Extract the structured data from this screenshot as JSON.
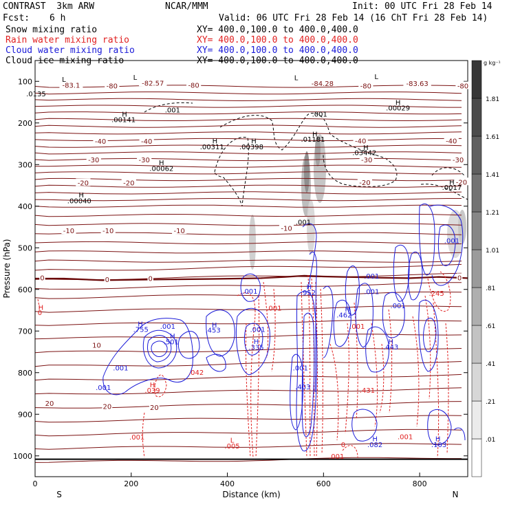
{
  "header": {
    "model": "CONTRAST  3km ARW",
    "center": "NCAR/MMM",
    "init": "Init: 00 UTC Fri 28 Feb 14",
    "fcst_label": "Fcst:",
    "fcst_value": "6 h",
    "valid": "Valid: 06 UTC Fri 28 Feb 14 (16 ChT Fri 28 Feb 14)"
  },
  "fields": [
    {
      "name": "Snow mixing ratio",
      "xy": "XY= 400.0,100.0 to 400.0,400.0",
      "color": "#000000"
    },
    {
      "name": "Rain water mixing ratio",
      "xy": "XY= 400.0,100.0 to 400.0,400.0",
      "color": "#e02020"
    },
    {
      "name": "Cloud water mixing ratio",
      "xy": "XY= 400.0,100.0 to 400.0,400.0",
      "color": "#1a1ad8"
    },
    {
      "name": "Cloud ice mixing ratio",
      "xy": "XY= 400.0,100.0 to 400.0,400.0",
      "color": "#000000"
    }
  ],
  "colors": {
    "temperature": "#7a1010",
    "freezing_level": "#6a0808",
    "rain": "#e02020",
    "cloud_water": "#1a1ad8",
    "ice": "#000000",
    "snow_shading": "#404040"
  },
  "chart_data": {
    "type": "contour",
    "xlabel": "Distance (km)",
    "ylabel": "Pressure (hPa)",
    "xlim": [
      0,
      900
    ],
    "ylim": [
      1050,
      50
    ],
    "x_ticks": [
      "0",
      "200",
      "400",
      "600",
      "800"
    ],
    "y_ticks": [
      "100",
      "200",
      "300",
      "400",
      "500",
      "600",
      "700",
      "800",
      "900",
      "1000"
    ],
    "endpoints": {
      "left": "S",
      "right": "N"
    },
    "colorbar": {
      "unit": "g kg⁻¹",
      "levels": [
        ".01",
        ".21",
        ".41",
        ".61",
        ".81",
        "1.01",
        "1.21",
        "1.41",
        "1.61",
        "1.81"
      ]
    },
    "temperature_contours": [
      {
        "value": "-80",
        "pressure": 125
      },
      {
        "value": "-40",
        "pressure": 252
      },
      {
        "value": "-30",
        "pressure": 295
      },
      {
        "value": "-20",
        "pressure": 340
      },
      {
        "value": "-10",
        "pressure": 470
      },
      {
        "value": "0",
        "pressure": 580
      },
      {
        "value": "10",
        "pressure": 730
      },
      {
        "value": "20",
        "pressure": 880
      }
    ],
    "temperature_labels": [
      {
        "text": "-83.1",
        "x": 75,
        "p": 110
      },
      {
        "text": "-80",
        "x": 160,
        "p": 112
      },
      {
        "text": "-82.57",
        "x": 245,
        "p": 105
      },
      {
        "text": "-80",
        "x": 330,
        "p": 110
      },
      {
        "text": "-84.28",
        "x": 598,
        "p": 106
      },
      {
        "text": "-80",
        "x": 688,
        "p": 112
      },
      {
        "text": "-83.63",
        "x": 795,
        "p": 106
      },
      {
        "text": "-80",
        "x": 890,
        "p": 112
      },
      {
        "text": "-40",
        "x": 136,
        "p": 245
      },
      {
        "text": "-40",
        "x": 232,
        "p": 245
      },
      {
        "text": "-40",
        "x": 677,
        "p": 244
      },
      {
        "text": "-40",
        "x": 866,
        "p": 244
      },
      {
        "text": "-30",
        "x": 122,
        "p": 290
      },
      {
        "text": "-30",
        "x": 227,
        "p": 290
      },
      {
        "text": "-30",
        "x": 690,
        "p": 290
      },
      {
        "text": "-30",
        "x": 880,
        "p": 290
      },
      {
        "text": "-20",
        "x": 100,
        "p": 345
      },
      {
        "text": "-20",
        "x": 195,
        "p": 345
      },
      {
        "text": "-20",
        "x": 686,
        "p": 344
      },
      {
        "text": "-20",
        "x": 887,
        "p": 343
      },
      {
        "text": "-10",
        "x": 70,
        "p": 460
      },
      {
        "text": "-10",
        "x": 152,
        "p": 460
      },
      {
        "text": "-10",
        "x": 300,
        "p": 460
      },
      {
        "text": "-10",
        "x": 523,
        "p": 454
      },
      {
        "text": "0",
        "x": 15,
        "p": 573
      },
      {
        "text": "0",
        "x": 150,
        "p": 577
      },
      {
        "text": "0",
        "x": 240,
        "p": 575
      },
      {
        "text": "0",
        "x": 883,
        "p": 573
      },
      {
        "text": "10",
        "x": 128,
        "p": 735
      },
      {
        "text": "20",
        "x": 30,
        "p": 875
      },
      {
        "text": "20",
        "x": 150,
        "p": 882
      },
      {
        "text": "20",
        "x": 248,
        "p": 885
      }
    ],
    "annotations": [
      {
        "text": "L",
        "x": 60,
        "p": 96
      },
      {
        "text": "L",
        "x": 208,
        "p": 91
      },
      {
        "text": "L",
        "x": 543,
        "p": 92
      },
      {
        "text": "L",
        "x": 710,
        "p": 90
      },
      {
        "text": ".0135",
        "x": 2,
        "p": 131
      },
      {
        "text": ".001",
        "x": 286,
        "p": 170
      },
      {
        "text": "H",
        "x": 186,
        "p": 180
      },
      {
        "text": ".00141",
        "x": 184,
        "p": 193
      },
      {
        "text": ".001",
        "x": 592,
        "p": 180
      },
      {
        "text": "H",
        "x": 755,
        "p": 152
      },
      {
        "text": ".00029",
        "x": 755,
        "p": 165
      },
      {
        "text": "H",
        "x": 582,
        "p": 228
      },
      {
        "text": ".01181",
        "x": 578,
        "p": 240
      },
      {
        "text": "H",
        "x": 374,
        "p": 244
      },
      {
        "text": ".00311",
        "x": 368,
        "p": 258
      },
      {
        "text": "H",
        "x": 455,
        "p": 244
      },
      {
        "text": ".00398",
        "x": 450,
        "p": 258
      },
      {
        "text": "H",
        "x": 688,
        "p": 260
      },
      {
        "text": ".03442",
        "x": 685,
        "p": 272
      },
      {
        "text": "H",
        "x": 263,
        "p": 296
      },
      {
        "text": ".00062",
        "x": 263,
        "p": 310
      },
      {
        "text": "H",
        "x": 867,
        "p": 343
      },
      {
        "text": ".0017",
        "x": 867,
        "p": 356
      },
      {
        "text": "H",
        "x": 96,
        "p": 374
      },
      {
        "text": ".00040",
        "x": 92,
        "p": 388
      },
      {
        "text": ".001",
        "x": 558,
        "p": 439
      },
      {
        "text": ".001",
        "x": 867,
        "p": 484
      },
      {
        "text": ".001",
        "x": 700,
        "p": 569
      },
      {
        "text": ".001",
        "x": 447,
        "p": 605
      },
      {
        "text": "H",
        "x": 570,
        "p": 595
      },
      {
        "text": ".952",
        "x": 568,
        "p": 609
      },
      {
        "text": ".001",
        "x": 700,
        "p": 606
      },
      {
        "text": ".001",
        "x": 755,
        "p": 640
      },
      {
        "text": ".245",
        "x": 835,
        "p": 610
      },
      {
        "text": "H",
        "x": 12,
        "p": 644
      },
      {
        "text": "0",
        "x": 10,
        "p": 657
      },
      {
        "text": ".001",
        "x": 497,
        "p": 646
      },
      {
        "text": "H",
        "x": 650,
        "p": 648
      },
      {
        "text": ".462",
        "x": 643,
        "p": 662
      },
      {
        "text": "H",
        "x": 219,
        "p": 684
      },
      {
        "text": ".755",
        "x": 220,
        "p": 697
      },
      {
        "text": ".001",
        "x": 276,
        "p": 690
      },
      {
        "text": "H",
        "x": 373,
        "p": 686
      },
      {
        "text": ".453",
        "x": 370,
        "p": 699
      },
      {
        "text": ".001",
        "x": 463,
        "p": 697
      },
      {
        "text": ".001",
        "x": 670,
        "p": 690
      },
      {
        "text": "H",
        "x": 286,
        "p": 713
      },
      {
        "text": ".501",
        "x": 283,
        "p": 727
      },
      {
        "text": "H",
        "x": 460,
        "p": 726
      },
      {
        "text": ".335",
        "x": 460,
        "p": 740
      },
      {
        "text": "H",
        "x": 740,
        "p": 726
      },
      {
        "text": ".443",
        "x": 740,
        "p": 739
      },
      {
        "text": ".001",
        "x": 178,
        "p": 790
      },
      {
        "text": ".042",
        "x": 335,
        "p": 800
      },
      {
        "text": ".001",
        "x": 552,
        "p": 790
      },
      {
        "text": ".001",
        "x": 142,
        "p": 837
      },
      {
        "text": "H",
        "x": 244,
        "p": 830
      },
      {
        "text": ".039",
        "x": 244,
        "p": 843
      },
      {
        "text": ".403",
        "x": 557,
        "p": 835
      },
      {
        "text": ".431",
        "x": 691,
        "p": 843
      },
      {
        "text": ".001",
        "x": 212,
        "p": 956
      },
      {
        "text": "L",
        "x": 410,
        "p": 963
      },
      {
        "text": ".005",
        "x": 410,
        "p": 977
      },
      {
        "text": "0",
        "x": 641,
        "p": 974
      },
      {
        "text": "H",
        "x": 707,
        "p": 960
      },
      {
        "text": ".082",
        "x": 707,
        "p": 974
      },
      {
        "text": ".001",
        "x": 770,
        "p": 955
      },
      {
        "text": "H",
        "x": 838,
        "p": 960
      },
      {
        "text": ".103",
        "x": 840,
        "p": 974
      },
      {
        "text": ".001",
        "x": 627,
        "p": 1002
      }
    ]
  }
}
